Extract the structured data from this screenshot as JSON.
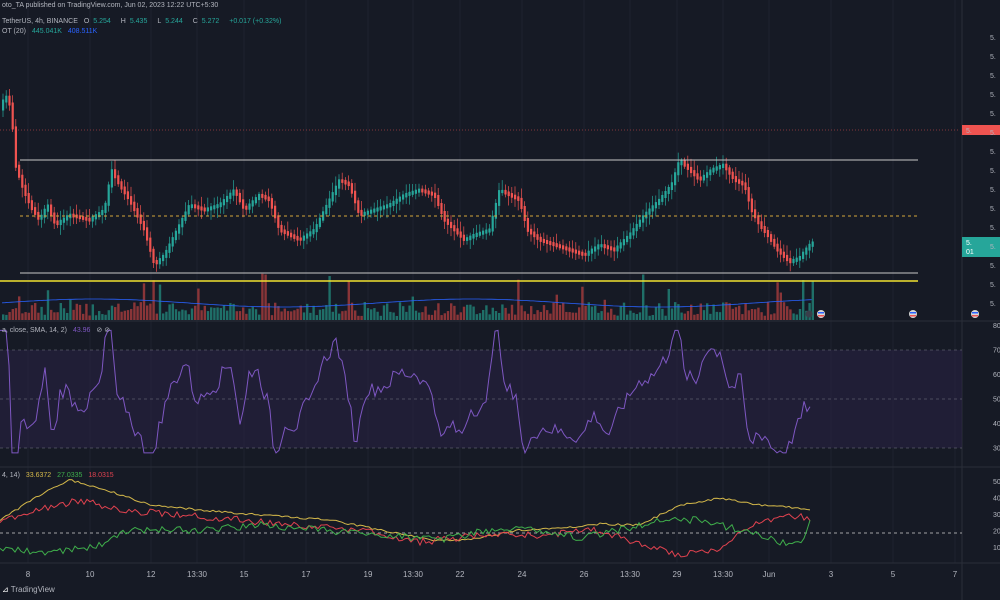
{
  "header": {
    "line1": "oto_TA published on TradingView.com, Jun 02, 2023 12:22 UTC+5:30",
    "symbol": "TetherUS, 4h, BINANCE",
    "ohlc": [
      {
        "label": "O",
        "value": "5.254"
      },
      {
        "label": "H",
        "value": "5.435"
      },
      {
        "label": "L",
        "value": "5.244"
      },
      {
        "label": "C",
        "value": "5.272"
      }
    ],
    "change": "+0.017 (+0.32%)",
    "vol_label": "OT (20)",
    "vol_value1": "445.041K",
    "vol_value2": "408.511K"
  },
  "rsi": {
    "label": "a, close, SMA, 14, 2)",
    "value": "43.96",
    "icons": "⊘ ⊘",
    "axis": [
      "80",
      "70",
      "60",
      "50",
      "40",
      "30"
    ]
  },
  "adx": {
    "label": "4, 14)",
    "values": [
      "33.6372",
      "27.0335",
      "18.0315"
    ],
    "axis": [
      "50",
      "40",
      "30",
      "20",
      "10"
    ]
  },
  "x_axis": [
    "8",
    "10",
    "12",
    "13:30",
    "15",
    "17",
    "19",
    "13:30",
    "22",
    "24",
    "26",
    "13:30",
    "29",
    "13:30",
    "Jun",
    "3",
    "5",
    "7"
  ],
  "price_axis": [
    "5.",
    "5.",
    "5.",
    "5.",
    "5.",
    "5.",
    "5.",
    "5.",
    "5.",
    "5.",
    "5.",
    "5.",
    "5.",
    "5.",
    "5."
  ],
  "price_tag_red": "5.",
  "price_tag_green": "5.",
  "price_tag_green2": "01",
  "footer": "TradingView",
  "colors": {
    "bg": "#161a25",
    "up": "#26a69a",
    "down": "#ef5350",
    "rsi": "#7e57c2",
    "yellow": "#f0e130",
    "adx_yellow": "#d4b84a",
    "adx_red": "#e0424f",
    "adx_green": "#3fae4b"
  }
}
